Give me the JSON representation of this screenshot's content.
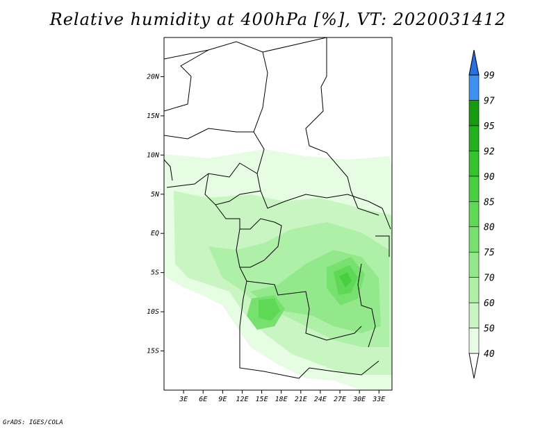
{
  "title": "Relative humidity at 400hPa [%], VT: 2020031412",
  "credit": "GrADS: IGES/COLA",
  "map": {
    "lat_labels": [
      "20N",
      "15N",
      "10N",
      "5N",
      "EQ",
      "5S",
      "10S",
      "15S"
    ],
    "lat_values": [
      20,
      15,
      10,
      5,
      0,
      -5,
      -10,
      -15
    ],
    "lon_labels": [
      "3E",
      "6E",
      "9E",
      "12E",
      "15E",
      "18E",
      "21E",
      "24E",
      "27E",
      "30E",
      "33E"
    ],
    "lon_values": [
      3,
      6,
      9,
      12,
      15,
      18,
      21,
      24,
      27,
      30,
      33
    ],
    "lat_range": [
      -20,
      25
    ],
    "lon_range": [
      0,
      35
    ]
  },
  "colorbar": {
    "levels": [
      "40",
      "50",
      "60",
      "70",
      "75",
      "80",
      "85",
      "90",
      "92",
      "95",
      "97",
      "99"
    ],
    "colors": [
      "#e6fce3",
      "#c9f5c2",
      "#aef0a8",
      "#92e88b",
      "#78e06f",
      "#5fd856",
      "#47cf40",
      "#34c22d",
      "#23b01d",
      "#169a10",
      "#3e91f0",
      "#2a6fdc",
      "#1a55c4"
    ]
  }
}
